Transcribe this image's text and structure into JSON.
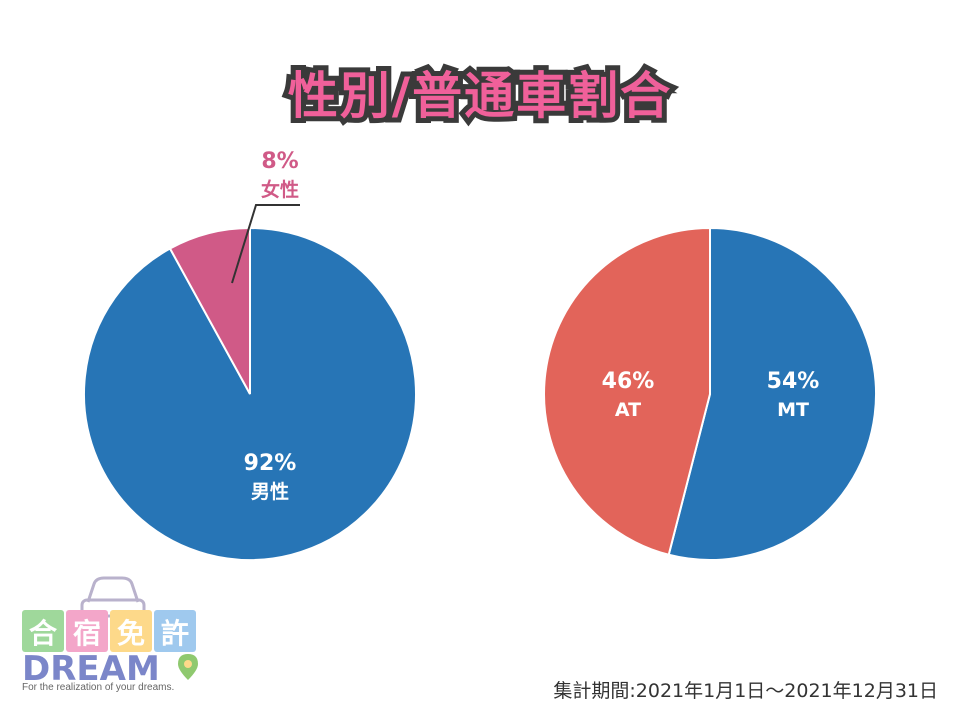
{
  "title": "性別/普通車割合",
  "period_note": "集計期間:2021年1月1日～2021年12月31日",
  "logo": {
    "chars": [
      "合",
      "宿",
      "免",
      "許"
    ],
    "wordmark": "DREAM",
    "tagline": "For the realization of your dreams.",
    "block_colors": [
      "#9fd89b",
      "#f3a6c9",
      "#fdd98a",
      "#9fc9ee"
    ],
    "wordmark_color": "#7b86c9"
  },
  "chart_data": [
    {
      "type": "pie",
      "slices": [
        {
          "name": "男性",
          "value": 92,
          "label": "92%",
          "color": "#2775b6"
        },
        {
          "name": "女性",
          "value": 8,
          "label": "8%",
          "color": "#d05a87"
        }
      ]
    },
    {
      "type": "pie",
      "slices": [
        {
          "name": "MT",
          "value": 54,
          "label": "54%",
          "color": "#2775b6"
        },
        {
          "name": "AT",
          "value": 46,
          "label": "46%",
          "color": "#e2645a"
        }
      ]
    }
  ]
}
